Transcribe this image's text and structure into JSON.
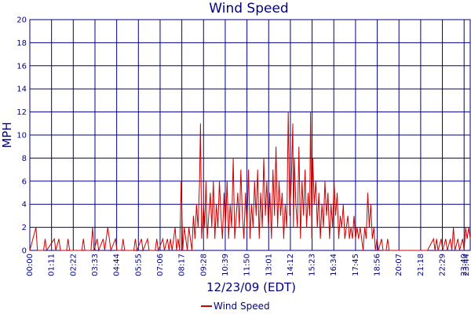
{
  "chart_data": {
    "type": "line",
    "title": "Wind Speed",
    "xlabel": "12/23/09 (EDT)",
    "ylabel": "MPH",
    "ylim": [
      0,
      20
    ],
    "yticks": [
      0,
      2,
      4,
      6,
      8,
      10,
      12,
      14,
      16,
      18,
      20
    ],
    "xlim_minutes": [
      0,
      1440
    ],
    "xtick_labels": [
      "00:00",
      "01:11",
      "02:22",
      "03:33",
      "04:44",
      "05:55",
      "07:06",
      "08:17",
      "09:28",
      "10:39",
      "11:50",
      "13:01",
      "14:12",
      "15:23",
      "16:34",
      "17:45",
      "18:56",
      "20:07",
      "21:18",
      "22:29",
      "23:40",
      "23:44"
    ],
    "grid": true,
    "legend_position": "bottom-center",
    "colors": {
      "series": "#cc0000",
      "grid": "#000080",
      "text": "#000080"
    },
    "series": [
      {
        "name": "Wind Speed",
        "points": [
          [
            0,
            0
          ],
          [
            20,
            2
          ],
          [
            25,
            0
          ],
          [
            45,
            0
          ],
          [
            50,
            1
          ],
          [
            55,
            0
          ],
          [
            80,
            1
          ],
          [
            85,
            0
          ],
          [
            95,
            1
          ],
          [
            100,
            0
          ],
          [
            120,
            0
          ],
          [
            125,
            1
          ],
          [
            130,
            0
          ],
          [
            170,
            0
          ],
          [
            175,
            1
          ],
          [
            180,
            0
          ],
          [
            200,
            0
          ],
          [
            205,
            2
          ],
          [
            210,
            0
          ],
          [
            220,
            1
          ],
          [
            225,
            0
          ],
          [
            240,
            1
          ],
          [
            245,
            0
          ],
          [
            255,
            2
          ],
          [
            260,
            1
          ],
          [
            265,
            0
          ],
          [
            280,
            1
          ],
          [
            285,
            0
          ],
          [
            300,
            0
          ],
          [
            305,
            1
          ],
          [
            310,
            0
          ],
          [
            340,
            0
          ],
          [
            345,
            1
          ],
          [
            350,
            0
          ],
          [
            365,
            1
          ],
          [
            370,
            0
          ],
          [
            385,
            1
          ],
          [
            390,
            0
          ],
          [
            410,
            0
          ],
          [
            415,
            1
          ],
          [
            420,
            0
          ],
          [
            435,
            1
          ],
          [
            440,
            0
          ],
          [
            450,
            1
          ],
          [
            455,
            0
          ],
          [
            460,
            1
          ],
          [
            465,
            0
          ],
          [
            475,
            2
          ],
          [
            480,
            0
          ],
          [
            485,
            1
          ],
          [
            490,
            0
          ],
          [
            495,
            6
          ],
          [
            500,
            0
          ],
          [
            505,
            2
          ],
          [
            510,
            1
          ],
          [
            515,
            0
          ],
          [
            520,
            2
          ],
          [
            525,
            1
          ],
          [
            530,
            0
          ],
          [
            535,
            3
          ],
          [
            540,
            1
          ],
          [
            545,
            4
          ],
          [
            550,
            2
          ],
          [
            555,
            6
          ],
          [
            558,
            11
          ],
          [
            562,
            1
          ],
          [
            568,
            4
          ],
          [
            572,
            2
          ],
          [
            576,
            6
          ],
          [
            580,
            1
          ],
          [
            585,
            3
          ],
          [
            590,
            5
          ],
          [
            595,
            2
          ],
          [
            600,
            6
          ],
          [
            605,
            1
          ],
          [
            610,
            4
          ],
          [
            615,
            2
          ],
          [
            620,
            6
          ],
          [
            625,
            3
          ],
          [
            630,
            1
          ],
          [
            635,
            5
          ],
          [
            640,
            2
          ],
          [
            645,
            6
          ],
          [
            650,
            1
          ],
          [
            655,
            4
          ],
          [
            660,
            2
          ],
          [
            665,
            8
          ],
          [
            670,
            1
          ],
          [
            675,
            3
          ],
          [
            680,
            5
          ],
          [
            685,
            2
          ],
          [
            690,
            7
          ],
          [
            695,
            3
          ],
          [
            700,
            1
          ],
          [
            705,
            5
          ],
          [
            710,
            2
          ],
          [
            715,
            7
          ],
          [
            720,
            1
          ],
          [
            725,
            4
          ],
          [
            730,
            2
          ],
          [
            735,
            6
          ],
          [
            740,
            3
          ],
          [
            745,
            7
          ],
          [
            750,
            1
          ],
          [
            755,
            5
          ],
          [
            760,
            2
          ],
          [
            765,
            8
          ],
          [
            770,
            3
          ],
          [
            775,
            6
          ],
          [
            780,
            2
          ],
          [
            785,
            5
          ],
          [
            790,
            1
          ],
          [
            795,
            7
          ],
          [
            800,
            3
          ],
          [
            805,
            9
          ],
          [
            810,
            2
          ],
          [
            815,
            6
          ],
          [
            820,
            3
          ],
          [
            825,
            5
          ],
          [
            830,
            1
          ],
          [
            835,
            4
          ],
          [
            840,
            2
          ],
          [
            845,
            12
          ],
          [
            850,
            3
          ],
          [
            855,
            6
          ],
          [
            860,
            11
          ],
          [
            862,
            2
          ],
          [
            865,
            8
          ],
          [
            870,
            4
          ],
          [
            875,
            2
          ],
          [
            880,
            9
          ],
          [
            885,
            1
          ],
          [
            890,
            6
          ],
          [
            895,
            3
          ],
          [
            900,
            7
          ],
          [
            905,
            2
          ],
          [
            910,
            5
          ],
          [
            915,
            3
          ],
          [
            918,
            12
          ],
          [
            922,
            1
          ],
          [
            925,
            8
          ],
          [
            930,
            4
          ],
          [
            935,
            6
          ],
          [
            940,
            2
          ],
          [
            945,
            5
          ],
          [
            950,
            1
          ],
          [
            955,
            4
          ],
          [
            960,
            2
          ],
          [
            965,
            6
          ],
          [
            970,
            3
          ],
          [
            975,
            5
          ],
          [
            980,
            1
          ],
          [
            985,
            4
          ],
          [
            990,
            2
          ],
          [
            995,
            6
          ],
          [
            1000,
            3
          ],
          [
            1005,
            5
          ],
          [
            1010,
            1
          ],
          [
            1015,
            3
          ],
          [
            1020,
            2
          ],
          [
            1025,
            4
          ],
          [
            1030,
            1
          ],
          [
            1035,
            2
          ],
          [
            1040,
            3
          ],
          [
            1045,
            1
          ],
          [
            1050,
            2
          ],
          [
            1055,
            1
          ],
          [
            1060,
            3
          ],
          [
            1065,
            1
          ],
          [
            1070,
            2
          ],
          [
            1075,
            1
          ],
          [
            1080,
            2
          ],
          [
            1085,
            1
          ],
          [
            1090,
            0
          ],
          [
            1095,
            2
          ],
          [
            1100,
            1
          ],
          [
            1105,
            5
          ],
          [
            1110,
            2
          ],
          [
            1115,
            4
          ],
          [
            1120,
            1
          ],
          [
            1125,
            2
          ],
          [
            1130,
            0
          ],
          [
            1135,
            1
          ],
          [
            1140,
            0
          ],
          [
            1150,
            1
          ],
          [
            1155,
            0
          ],
          [
            1165,
            0
          ],
          [
            1170,
            1
          ],
          [
            1175,
            0
          ],
          [
            1200,
            0
          ],
          [
            1250,
            0
          ],
          [
            1300,
            0
          ],
          [
            1320,
            1
          ],
          [
            1325,
            0
          ],
          [
            1330,
            1
          ],
          [
            1335,
            0
          ],
          [
            1345,
            1
          ],
          [
            1350,
            0
          ],
          [
            1360,
            1
          ],
          [
            1365,
            0
          ],
          [
            1375,
            1
          ],
          [
            1380,
            0
          ],
          [
            1385,
            2
          ],
          [
            1390,
            0
          ],
          [
            1400,
            1
          ],
          [
            1405,
            0
          ],
          [
            1415,
            1
          ],
          [
            1420,
            0
          ],
          [
            1425,
            2
          ],
          [
            1430,
            1
          ],
          [
            1435,
            2
          ],
          [
            1440,
            1
          ]
        ]
      }
    ]
  }
}
